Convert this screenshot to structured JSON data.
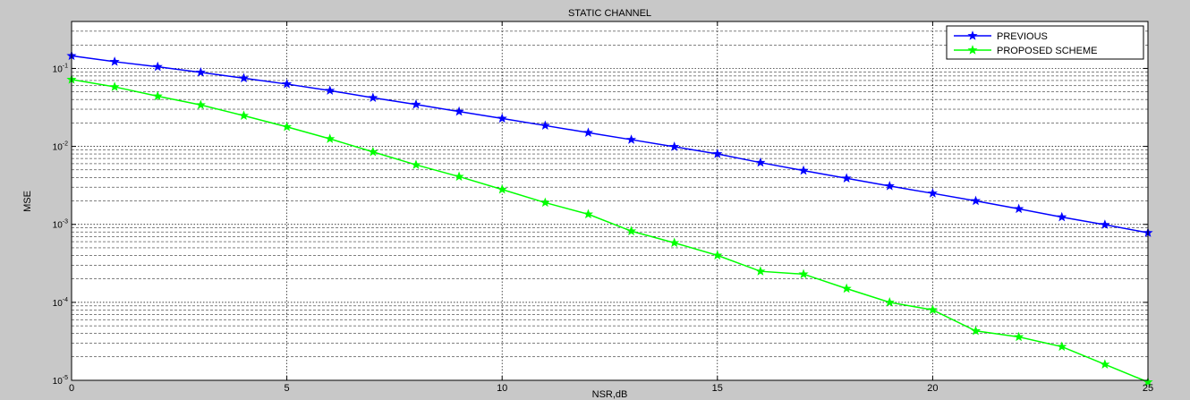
{
  "chart_data": {
    "type": "line",
    "title": "STATIC CHANNEL",
    "xlabel": "NSR,dB",
    "ylabel": "MSE",
    "xlim": [
      0,
      25
    ],
    "ylim": [
      1e-05,
      0.4
    ],
    "yscale": "log",
    "grid": true,
    "legend_position": "top-right",
    "x": [
      0,
      1,
      2,
      3,
      4,
      5,
      6,
      7,
      8,
      9,
      10,
      11,
      12,
      13,
      14,
      15,
      16,
      17,
      18,
      19,
      20,
      21,
      22,
      23,
      24,
      25
    ],
    "x_ticks": [
      {
        "v": 0,
        "label": "0"
      },
      {
        "v": 5,
        "label": "5"
      },
      {
        "v": 10,
        "label": "10"
      },
      {
        "v": 15,
        "label": "15"
      },
      {
        "v": 20,
        "label": "20"
      },
      {
        "v": 25,
        "label": "25"
      }
    ],
    "y_ticks": [
      {
        "v": 0.1,
        "base": "10",
        "exp": "-1"
      },
      {
        "v": 0.01,
        "base": "10",
        "exp": "-2"
      },
      {
        "v": 0.001,
        "base": "10",
        "exp": "-3"
      },
      {
        "v": 0.0001,
        "base": "10",
        "exp": "-4"
      },
      {
        "v": 1e-05,
        "base": "10",
        "exp": "-5"
      }
    ],
    "series": [
      {
        "name": "PREVIOUS",
        "color": "#0000ff",
        "values": [
          0.145,
          0.122,
          0.105,
          0.089,
          0.075,
          0.063,
          0.052,
          0.042,
          0.0345,
          0.028,
          0.0228,
          0.0185,
          0.015,
          0.0122,
          0.0099,
          0.008,
          0.0062,
          0.0049,
          0.0039,
          0.0031,
          0.0025,
          0.002,
          0.00158,
          0.00124,
          0.00099,
          0.00078
        ]
      },
      {
        "name": "PROPOSED SCHEME",
        "color": "#00ff00",
        "values": [
          0.072,
          0.058,
          0.044,
          0.034,
          0.0248,
          0.0178,
          0.0125,
          0.0085,
          0.0058,
          0.0041,
          0.0028,
          0.0019,
          0.00135,
          0.00082,
          0.00058,
          0.0004,
          0.00025,
          0.00023,
          0.00015,
          0.0001,
          8e-05,
          4.3e-05,
          3.6e-05,
          2.7e-05,
          1.6e-05,
          9.5e-06
        ]
      }
    ]
  }
}
